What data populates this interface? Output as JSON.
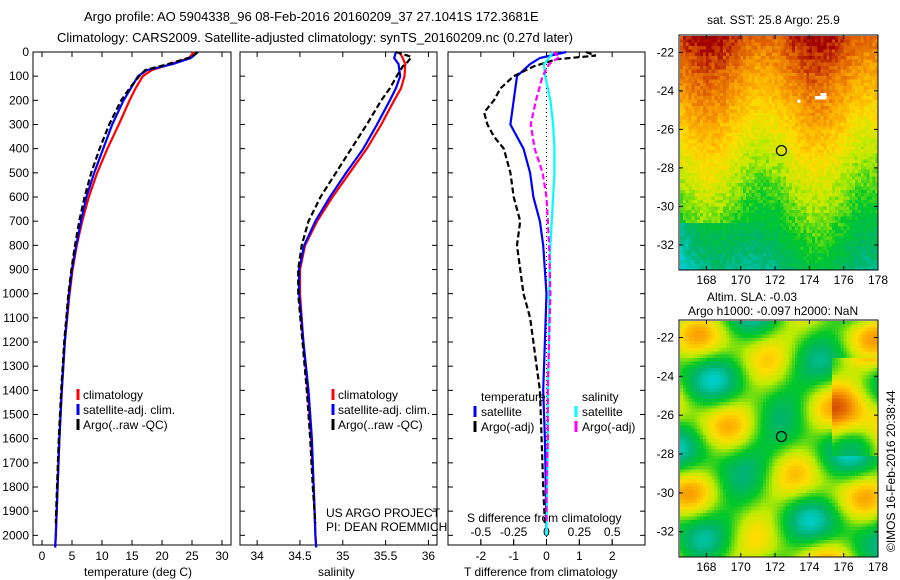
{
  "header": {
    "title_line1": "Argo profile: AO 5904338_96 08-Feb-2016 20160209_37 27.1041S 172.3681E",
    "title_line2": "Climatology: CARS2009. Satellite-adjusted climatology: synTS_20160209.nc (0.27d later)"
  },
  "credits": {
    "project": "US ARGO PROJECT",
    "pi": "PI: DEAN ROEMMICH",
    "copyright": "©IMOS 16-Feb-2016 20:38:44"
  },
  "colors": {
    "climatology": "#ff0000",
    "satellite": "#0000ff",
    "argo": "#000000",
    "sal_satellite": "#00ffff",
    "sal_argo": "#ff00ff"
  },
  "chart_data": [
    {
      "type": "line",
      "id": "temperature",
      "xlabel": "temperature (deg C)",
      "ylabel": "depth",
      "xlim": [
        -1.5,
        31.5
      ],
      "ylim": [
        2050,
        0
      ],
      "xticks": [
        0,
        5,
        10,
        15,
        20,
        25,
        30
      ],
      "yticks": [
        0,
        100,
        200,
        300,
        400,
        500,
        600,
        700,
        800,
        900,
        1000,
        1100,
        1200,
        1300,
        1400,
        1500,
        1600,
        1700,
        1800,
        1900,
        2000
      ],
      "legend": [
        "climatology",
        "satellite-adj. clim.",
        "Argo(..raw -QC)"
      ],
      "series": [
        {
          "name": "climatology",
          "style": "solid",
          "depth": [
            0,
            25,
            50,
            75,
            100,
            150,
            200,
            300,
            400,
            500,
            600,
            700,
            800,
            900,
            1000,
            1200,
            1400,
            1600,
            1800,
            2000,
            2050
          ],
          "values": [
            25.3,
            24.5,
            21.5,
            18.3,
            16.8,
            15.6,
            14.6,
            12.8,
            10.9,
            9.2,
            7.8,
            6.7,
            5.8,
            5.1,
            4.6,
            3.8,
            3.3,
            2.9,
            2.6,
            2.3,
            2.2
          ]
        },
        {
          "name": "satellite-adj. clim.",
          "style": "solid",
          "depth": [
            0,
            25,
            50,
            75,
            100,
            150,
            200,
            300,
            400,
            500,
            600,
            700,
            800,
            900,
            1000,
            1200,
            1400,
            1600,
            1800,
            2000,
            2050
          ],
          "values": [
            26.0,
            24.8,
            21.8,
            17.5,
            16.0,
            14.8,
            13.6,
            11.7,
            10.2,
            8.7,
            7.4,
            6.5,
            5.7,
            5.0,
            4.5,
            3.8,
            3.3,
            2.9,
            2.6,
            2.3,
            2.2
          ]
        },
        {
          "name": "Argo(..raw -QC)",
          "style": "dashed",
          "depth": [
            0,
            20,
            50,
            75,
            100,
            150,
            200,
            300,
            400,
            500,
            600,
            700,
            800,
            900,
            1000,
            1200,
            1400,
            1600,
            1800,
            1950
          ],
          "values": [
            25.9,
            25.0,
            21.0,
            17.2,
            16.2,
            14.6,
            13.2,
            11.2,
            9.6,
            8.2,
            7.1,
            6.2,
            5.5,
            4.9,
            4.4,
            3.7,
            3.2,
            2.8,
            2.5,
            2.3
          ]
        }
      ]
    },
    {
      "type": "line",
      "id": "salinity",
      "xlabel": "salinity",
      "xlim": [
        33.8,
        36.1
      ],
      "ylim": [
        2050,
        0
      ],
      "xticks": [
        34,
        34.5,
        35,
        35.5,
        36
      ],
      "legend": [
        "climatology",
        "satellite-adj. clim.",
        "Argo(..raw -QC)"
      ],
      "series": [
        {
          "name": "climatology",
          "style": "solid",
          "depth": [
            0,
            25,
            50,
            100,
            150,
            200,
            300,
            400,
            500,
            600,
            700,
            800,
            900,
            1000,
            1200,
            1400,
            1600,
            1800,
            2000,
            2050
          ],
          "values": [
            35.66,
            35.7,
            35.73,
            35.72,
            35.68,
            35.6,
            35.45,
            35.28,
            35.08,
            34.88,
            34.7,
            34.56,
            34.5,
            34.5,
            34.54,
            34.59,
            34.63,
            34.66,
            34.68,
            34.69
          ]
        },
        {
          "name": "satellite-adj. clim.",
          "style": "solid",
          "depth": [
            0,
            25,
            50,
            100,
            150,
            200,
            300,
            400,
            500,
            600,
            700,
            800,
            900,
            1000,
            1200,
            1400,
            1600,
            1800,
            2000,
            2050
          ],
          "values": [
            35.62,
            35.6,
            35.65,
            35.67,
            35.62,
            35.55,
            35.4,
            35.24,
            35.04,
            34.85,
            34.68,
            34.55,
            34.49,
            34.49,
            34.54,
            34.6,
            34.64,
            34.66,
            34.68,
            34.69
          ]
        },
        {
          "name": "Argo(..raw -QC)",
          "style": "dashed",
          "depth": [
            0,
            20,
            40,
            60,
            100,
            150,
            200,
            300,
            400,
            500,
            600,
            700,
            800,
            900,
            1000,
            1200,
            1400,
            1600,
            1800,
            1950
          ],
          "values": [
            35.62,
            35.8,
            35.76,
            35.7,
            35.63,
            35.55,
            35.45,
            35.28,
            35.1,
            34.92,
            34.74,
            34.6,
            34.52,
            34.48,
            34.48,
            34.53,
            34.58,
            34.62,
            34.65,
            34.68
          ]
        }
      ]
    },
    {
      "type": "line",
      "id": "differences",
      "xlabel": "T difference from climatology",
      "x2label": "S difference from climatology",
      "xlim": [
        -3,
        3
      ],
      "ylim": [
        2050,
        0
      ],
      "xticks": [
        -2,
        -1,
        0,
        1,
        2
      ],
      "x2ticks": [
        "-0.5",
        "-0.25",
        "0",
        "0.25",
        "0.5"
      ],
      "legend": {
        "temp_header": "temperature",
        "sal_header": "salinity",
        "items": [
          "satellite",
          "Argo(-adj)",
          "satellite",
          "Argo(-adj)"
        ]
      },
      "series": [
        {
          "name": "temperature satellite",
          "axis": "T",
          "style": "solid",
          "depth": [
            0,
            25,
            50,
            100,
            200,
            300,
            400,
            500,
            600,
            700,
            800,
            1000,
            1200,
            1400,
            1600,
            1800,
            2000
          ],
          "values": [
            0.6,
            -0.2,
            -0.5,
            -0.9,
            -1.0,
            -1.1,
            -0.7,
            -0.5,
            -0.4,
            -0.2,
            -0.1,
            0.0,
            -0.05,
            -0.1,
            -0.05,
            -0.02,
            0.0
          ]
        },
        {
          "name": "temperature Argo(-adj)",
          "axis": "T",
          "style": "dashed",
          "depth": [
            0,
            15,
            30,
            60,
            100,
            150,
            200,
            250,
            300,
            350,
            400,
            500,
            600,
            700,
            800,
            900,
            1000,
            1100,
            1200,
            1300,
            1400,
            1600,
            1800,
            1950
          ],
          "values": [
            1.2,
            1.5,
            0.3,
            -0.4,
            -1.0,
            -1.4,
            -1.6,
            -1.9,
            -1.8,
            -1.6,
            -1.3,
            -1.1,
            -1.0,
            -0.8,
            -0.9,
            -0.8,
            -0.7,
            -0.5,
            -0.4,
            -0.3,
            -0.2,
            -0.15,
            -0.1,
            -0.05
          ]
        },
        {
          "name": "salinity satellite",
          "axis": "S",
          "style": "solid",
          "depth": [
            0,
            25,
            50,
            100,
            200,
            300,
            400,
            500,
            600,
            800,
            1000,
            1200,
            1400,
            1600,
            1800,
            2000
          ],
          "values": [
            0.05,
            0.02,
            -0.02,
            -0.01,
            0.03,
            0.05,
            0.06,
            0.06,
            0.05,
            0.03,
            0.02,
            0.02,
            0.01,
            0.01,
            0.005,
            0.0
          ]
        },
        {
          "name": "salinity Argo(-adj)",
          "axis": "S",
          "style": "dashed",
          "depth": [
            0,
            20,
            50,
            100,
            200,
            300,
            400,
            500,
            600,
            800,
            1000,
            1200,
            1400,
            1600,
            1800,
            1950
          ],
          "values": [
            0.05,
            0.1,
            0.02,
            -0.03,
            -0.08,
            -0.12,
            -0.09,
            -0.03,
            0.0,
            0.02,
            0.03,
            0.02,
            0.01,
            0.01,
            0.0,
            0.0
          ]
        }
      ]
    },
    {
      "type": "heatmap",
      "id": "sst_map",
      "title": "sat. SST: 25.8 Argo: 25.9",
      "xlim": [
        166.4,
        178.0
      ],
      "ylim": [
        -33.3,
        -21.1
      ],
      "xticks": [
        168,
        170,
        172,
        174,
        176,
        178
      ],
      "yticks": [
        -22,
        -24,
        -26,
        -28,
        -30,
        -32
      ],
      "marker": {
        "lon": 172.37,
        "lat": -27.1
      }
    },
    {
      "type": "heatmap",
      "id": "sla_map",
      "title_line1": "Altim. SLA: -0.03",
      "title_line2": "Argo h1000: -0.097 h2000: NaN",
      "xlim": [
        166.4,
        178.0
      ],
      "ylim": [
        -33.3,
        -21.1
      ],
      "xticks": [
        168,
        170,
        172,
        174,
        176,
        178
      ],
      "yticks": [
        -22,
        -24,
        -26,
        -28,
        -30,
        -32
      ],
      "marker": {
        "lon": 172.37,
        "lat": -27.1
      }
    }
  ]
}
